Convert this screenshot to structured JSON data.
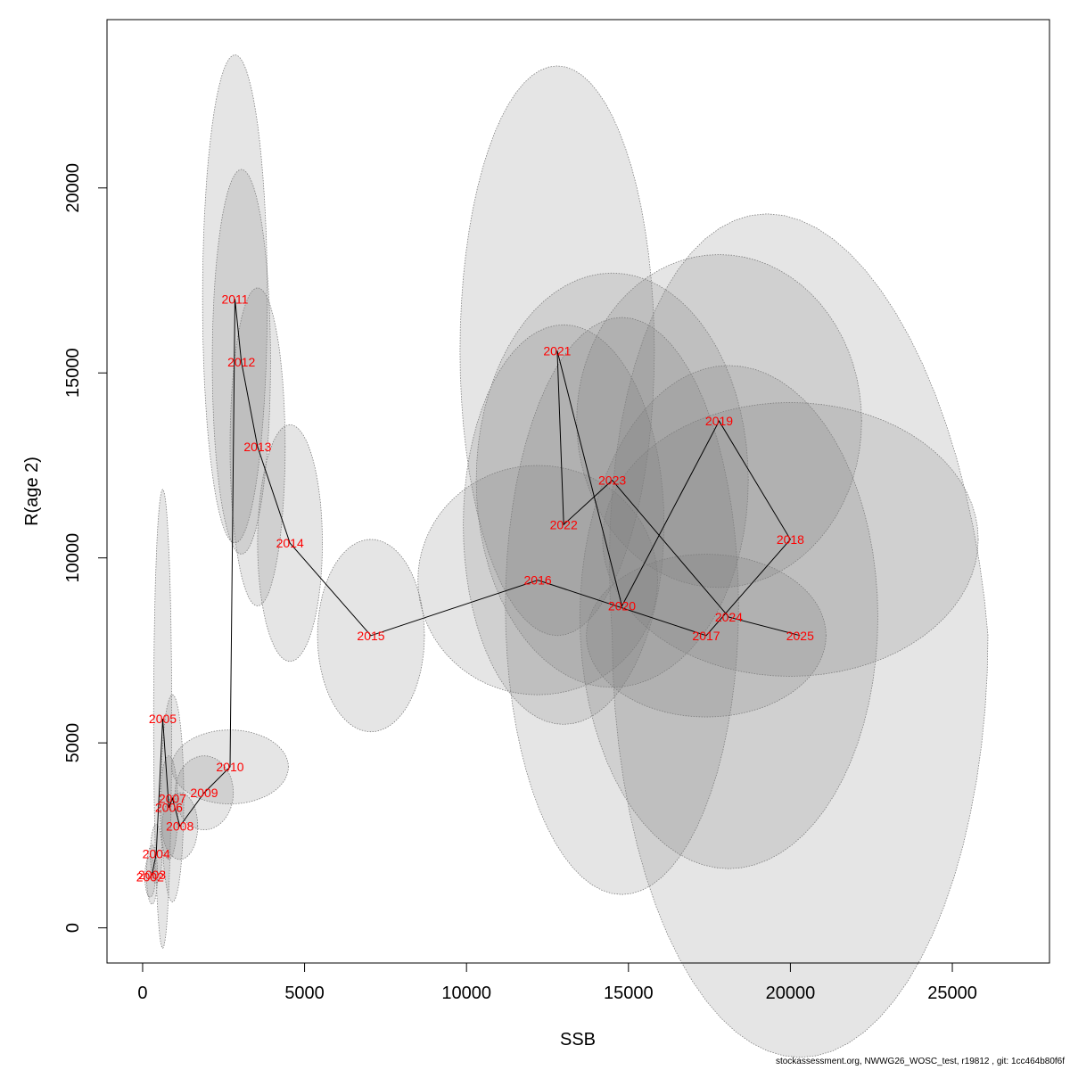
{
  "chart_data": {
    "type": "scatter",
    "title": "",
    "xlabel": "SSB",
    "ylabel": "R(age 2)",
    "xlim": [
      -1100,
      28000
    ],
    "ylim": [
      -950,
      24550
    ],
    "xticks": [
      0,
      5000,
      10000,
      15000,
      20000,
      25000
    ],
    "yticks": [
      0,
      5000,
      10000,
      15000,
      20000
    ],
    "fill_color": "#7f7f7f",
    "fill_opacity": 0.2,
    "ellipse_stroke": "#7f7f7f",
    "line_color": "#000000",
    "label_color": "#ff0000",
    "points": [
      {
        "year": "2002",
        "x": 230,
        "y": 1380,
        "rx": 160,
        "ry": 550,
        "shift": 0
      },
      {
        "year": "2003",
        "x": 290,
        "y": 1440,
        "rx": 170,
        "ry": 800,
        "shift": 0
      },
      {
        "year": "2004",
        "x": 420,
        "y": 2000,
        "rx": 180,
        "ry": 800,
        "shift": 0
      },
      {
        "year": "2005",
        "x": 620,
        "y": 5650,
        "rx": 280,
        "ry": 6200,
        "shift": 0
      },
      {
        "year": "2006",
        "x": 810,
        "y": 3250,
        "rx": 280,
        "ry": 1400,
        "shift": 0
      },
      {
        "year": "2007",
        "x": 920,
        "y": 3500,
        "rx": 350,
        "ry": 2800,
        "shift": 0
      },
      {
        "year": "2008",
        "x": 1150,
        "y": 2750,
        "rx": 550,
        "ry": 900,
        "shift": 0
      },
      {
        "year": "2009",
        "x": 1900,
        "y": 3650,
        "rx": 900,
        "ry": 1000,
        "shift": 0
      },
      {
        "year": "2010",
        "x": 2700,
        "y": 4350,
        "rx": 1800,
        "ry": 1000,
        "shift": 0
      },
      {
        "year": "2011",
        "x": 2850,
        "y": 17000,
        "rx": 1000,
        "ry": 6600,
        "shift": 0
      },
      {
        "year": "2012",
        "x": 3050,
        "y": 15300,
        "rx": 900,
        "ry": 5200,
        "shift": 0
      },
      {
        "year": "2013",
        "x": 3550,
        "y": 13000,
        "rx": 850,
        "ry": 4300,
        "shift": 0
      },
      {
        "year": "2014",
        "x": 4550,
        "y": 10400,
        "rx": 1000,
        "ry": 3200,
        "shift": 0
      },
      {
        "year": "2015",
        "x": 7050,
        "y": 7900,
        "rx": 1650,
        "ry": 2600,
        "shift": 0
      },
      {
        "year": "2016",
        "x": 12200,
        "y": 9400,
        "rx": 3700,
        "ry": 3100,
        "shift": 0
      },
      {
        "year": "2017",
        "x": 17400,
        "y": 7900,
        "rx": 3700,
        "ry": 2200,
        "shift": 0
      },
      {
        "year": "2018",
        "x": 20000,
        "y": 10500,
        "rx": 5800,
        "ry": 3700,
        "shift": 0
      },
      {
        "year": "2019",
        "x": 17800,
        "y": 13700,
        "rx": 4400,
        "ry": 4500,
        "shift": 0
      },
      {
        "year": "2020",
        "x": 14800,
        "y": 8700,
        "rx": 3600,
        "ry": 7800,
        "shift": 0
      },
      {
        "year": "2021",
        "x": 12800,
        "y": 15600,
        "rx": 3000,
        "ry": 7700,
        "shift": 0
      },
      {
        "year": "2022",
        "x": 13000,
        "y": 10900,
        "rx": 3100,
        "ry": 5400,
        "shift": 0
      },
      {
        "year": "2023",
        "x": 14500,
        "y": 12100,
        "rx": 4200,
        "ry": 5600,
        "shift": 0
      },
      {
        "year": "2024",
        "x": 18100,
        "y": 8400,
        "rx": 4600,
        "ry": 6800,
        "shift": 0
      },
      {
        "year": "2025",
        "x": 20300,
        "y": 7900,
        "rx": 5800,
        "ry": 11400,
        "shift": -1700
      }
    ]
  },
  "footer": {
    "text": "stockassessment.org, NWWG26_WOSC_test, r19812 , git: 1cc464b80f6f"
  }
}
